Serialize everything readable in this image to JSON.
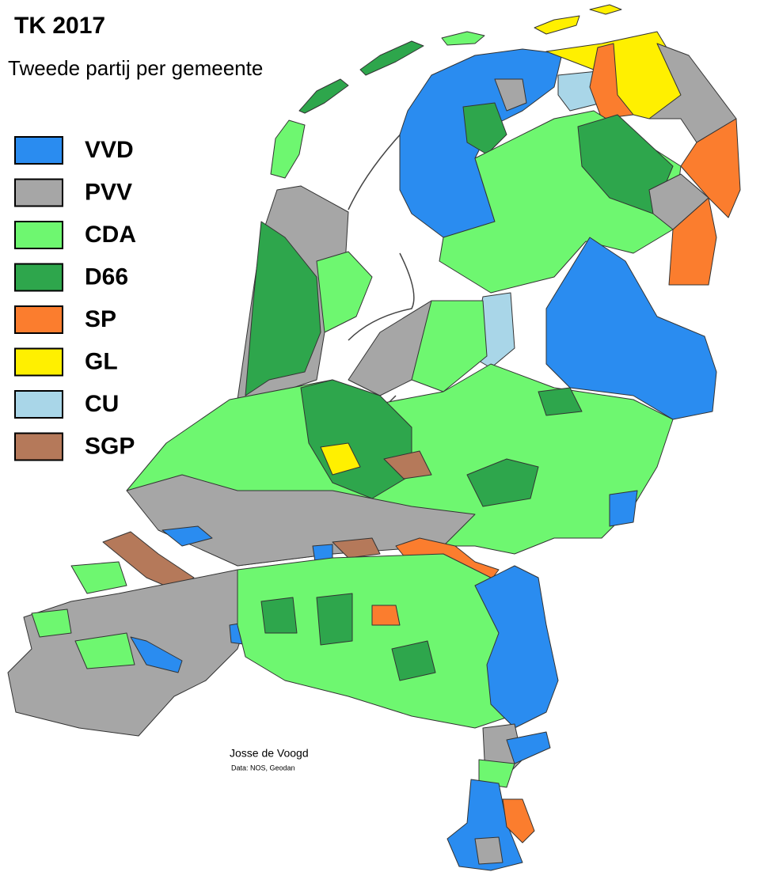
{
  "title": "TK 2017",
  "subtitle": "Tweede partij per gemeente",
  "legend": [
    {
      "label": "VVD",
      "color": "#2a8cf0"
    },
    {
      "label": "PVV",
      "color": "#a6a6a6"
    },
    {
      "label": "CDA",
      "color": "#6ef770"
    },
    {
      "label": "D66",
      "color": "#2ea64c"
    },
    {
      "label": "SP",
      "color": "#fb7d2e"
    },
    {
      "label": "GL",
      "color": "#fff000"
    },
    {
      "label": "CU",
      "color": "#a9d6e8"
    },
    {
      "label": "SGP",
      "color": "#b5795a"
    }
  ],
  "credit": {
    "author": "Josse de Voogd",
    "source": "Data: NOS, Geodan"
  }
}
